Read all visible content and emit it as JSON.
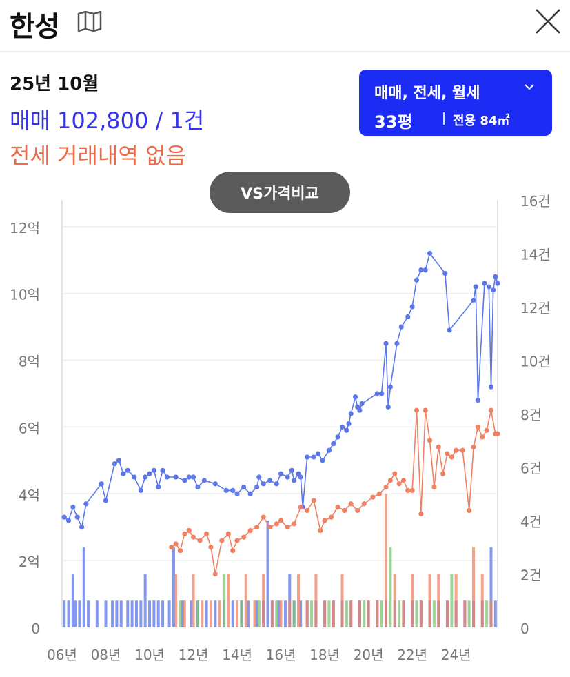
{
  "header": {
    "title": "한성",
    "map_icon": "map-icon",
    "close_icon": "close-icon"
  },
  "summary": {
    "date": "25년 10월",
    "sale_line": "매매 102,800 / 1건",
    "jeonse_line": "전세 거래내역 없음"
  },
  "filter": {
    "types": "매매, 전세, 월세",
    "size": "33평",
    "area": "전용 84㎡"
  },
  "vs_button": "VS가격비교",
  "colors": {
    "sale": "#5b77e8",
    "jeonse": "#f08264",
    "monthly": "#7cc470",
    "filter_bg": "#1c2cf5"
  },
  "chart_data": {
    "type": "line",
    "x_ticks": [
      "06년",
      "08년",
      "10년",
      "12년",
      "14년",
      "16년",
      "18년",
      "20년",
      "22년",
      "24년"
    ],
    "y_ticks_left": [
      "0",
      "2억",
      "4억",
      "6억",
      "8억",
      "10억",
      "12억"
    ],
    "y_ticks_right": [
      "0",
      "2건",
      "4건",
      "6건",
      "8건",
      "10건",
      "12건",
      "14건",
      "16건"
    ],
    "xlim": [
      2006,
      2025.9
    ],
    "ylim_left": [
      0,
      12.8
    ],
    "ylim_right": [
      0,
      16
    ],
    "series": [
      {
        "kind": "sale",
        "points": [
          [
            2006.1,
            3.3
          ],
          [
            2006.3,
            3.2
          ],
          [
            2006.5,
            3.6
          ],
          [
            2006.7,
            3.3
          ],
          [
            2006.9,
            3.0
          ],
          [
            2007.1,
            3.7
          ],
          [
            2007.8,
            4.3
          ],
          [
            2008.0,
            3.8
          ],
          [
            2008.4,
            4.9
          ],
          [
            2008.6,
            5.0
          ],
          [
            2008.8,
            4.6
          ],
          [
            2009.0,
            4.7
          ],
          [
            2009.3,
            4.5
          ],
          [
            2009.6,
            4.1
          ],
          [
            2009.8,
            4.5
          ],
          [
            2010.0,
            4.6
          ],
          [
            2010.2,
            4.7
          ],
          [
            2010.4,
            4.2
          ],
          [
            2010.6,
            4.7
          ],
          [
            2010.8,
            4.5
          ],
          [
            2011.2,
            4.5
          ],
          [
            2011.6,
            4.4
          ],
          [
            2011.8,
            4.5
          ],
          [
            2012.0,
            4.5
          ],
          [
            2012.2,
            4.2
          ],
          [
            2012.5,
            4.4
          ],
          [
            2013.0,
            4.3
          ],
          [
            2013.5,
            4.1
          ],
          [
            2013.8,
            4.1
          ],
          [
            2014.0,
            4.0
          ],
          [
            2014.3,
            4.2
          ],
          [
            2014.6,
            4.0
          ],
          [
            2014.9,
            4.2
          ],
          [
            2015.0,
            4.5
          ],
          [
            2015.2,
            4.3
          ],
          [
            2015.5,
            4.4
          ],
          [
            2015.8,
            4.3
          ],
          [
            2016.0,
            4.6
          ],
          [
            2016.3,
            4.5
          ],
          [
            2016.5,
            4.7
          ],
          [
            2016.6,
            4.4
          ],
          [
            2016.8,
            4.6
          ],
          [
            2016.9,
            4.5
          ],
          [
            2017.0,
            3.6
          ],
          [
            2017.2,
            5.1
          ],
          [
            2017.5,
            5.1
          ],
          [
            2017.7,
            5.2
          ],
          [
            2017.9,
            5.0
          ],
          [
            2018.2,
            5.3
          ],
          [
            2018.4,
            5.5
          ],
          [
            2018.6,
            5.7
          ],
          [
            2018.8,
            6.0
          ],
          [
            2019.0,
            5.9
          ],
          [
            2019.1,
            6.1
          ],
          [
            2019.2,
            6.4
          ],
          [
            2019.4,
            6.9
          ],
          [
            2019.5,
            6.6
          ],
          [
            2019.6,
            6.5
          ],
          [
            2019.7,
            6.7
          ],
          [
            2020.4,
            7.0
          ],
          [
            2020.6,
            7.0
          ],
          [
            2020.8,
            8.5
          ],
          [
            2020.9,
            6.6
          ],
          [
            2021.0,
            7.2
          ],
          [
            2021.3,
            8.5
          ],
          [
            2021.5,
            9.0
          ],
          [
            2021.8,
            9.3
          ],
          [
            2022.0,
            9.6
          ],
          [
            2022.2,
            10.4
          ],
          [
            2022.4,
            10.7
          ],
          [
            2022.6,
            10.7
          ],
          [
            2022.8,
            11.2
          ],
          [
            2023.5,
            10.6
          ],
          [
            2023.7,
            8.9
          ],
          [
            2024.8,
            9.8
          ],
          [
            2024.9,
            10.2
          ],
          [
            2025.0,
            6.8
          ],
          [
            2025.3,
            10.3
          ],
          [
            2025.5,
            10.2
          ],
          [
            2025.6,
            7.2
          ],
          [
            2025.7,
            10.1
          ],
          [
            2025.8,
            10.5
          ],
          [
            2025.9,
            10.3
          ]
        ]
      },
      {
        "kind": "jeonse",
        "points": [
          [
            2011.0,
            2.4
          ],
          [
            2011.2,
            2.5
          ],
          [
            2011.4,
            2.3
          ],
          [
            2011.6,
            2.8
          ],
          [
            2011.8,
            2.9
          ],
          [
            2012.0,
            2.7
          ],
          [
            2012.3,
            2.6
          ],
          [
            2012.6,
            2.8
          ],
          [
            2012.8,
            2.4
          ],
          [
            2013.0,
            1.6
          ],
          [
            2013.3,
            2.6
          ],
          [
            2013.6,
            2.8
          ],
          [
            2013.8,
            2.3
          ],
          [
            2014.0,
            2.6
          ],
          [
            2014.3,
            2.7
          ],
          [
            2014.6,
            2.9
          ],
          [
            2014.9,
            3.0
          ],
          [
            2015.2,
            3.3
          ],
          [
            2015.5,
            3.0
          ],
          [
            2015.8,
            3.1
          ],
          [
            2016.0,
            3.2
          ],
          [
            2016.3,
            3.0
          ],
          [
            2016.6,
            3.1
          ],
          [
            2016.9,
            3.6
          ],
          [
            2017.2,
            3.5
          ],
          [
            2017.5,
            3.8
          ],
          [
            2017.8,
            2.9
          ],
          [
            2018.0,
            3.2
          ],
          [
            2018.3,
            3.3
          ],
          [
            2018.6,
            3.6
          ],
          [
            2018.9,
            3.5
          ],
          [
            2019.2,
            3.7
          ],
          [
            2019.5,
            3.5
          ],
          [
            2019.8,
            3.7
          ],
          [
            2020.2,
            3.9
          ],
          [
            2020.5,
            4.0
          ],
          [
            2020.8,
            4.2
          ],
          [
            2021.0,
            4.4
          ],
          [
            2021.2,
            4.6
          ],
          [
            2021.4,
            4.3
          ],
          [
            2021.6,
            4.4
          ],
          [
            2021.8,
            4.1
          ],
          [
            2022.0,
            4.1
          ],
          [
            2022.2,
            6.5
          ],
          [
            2022.4,
            3.4
          ],
          [
            2022.6,
            6.5
          ],
          [
            2022.8,
            5.6
          ],
          [
            2023.0,
            4.2
          ],
          [
            2023.2,
            5.4
          ],
          [
            2023.4,
            4.6
          ],
          [
            2023.6,
            5.2
          ],
          [
            2023.8,
            5.1
          ],
          [
            2024.0,
            5.3
          ],
          [
            2024.3,
            5.3
          ],
          [
            2024.6,
            3.5
          ],
          [
            2024.8,
            5.4
          ],
          [
            2025.0,
            6.0
          ],
          [
            2025.2,
            5.7
          ],
          [
            2025.4,
            5.9
          ],
          [
            2025.6,
            6.5
          ],
          [
            2025.8,
            5.8
          ],
          [
            2025.9,
            5.8
          ]
        ]
      }
    ],
    "volume": [
      {
        "kind": "sale",
        "bars": [
          [
            2006.1,
            1
          ],
          [
            2006.3,
            1
          ],
          [
            2006.5,
            2
          ],
          [
            2006.6,
            1
          ],
          [
            2006.8,
            1
          ],
          [
            2007.0,
            3
          ],
          [
            2007.2,
            1
          ],
          [
            2007.6,
            1
          ],
          [
            2008.0,
            1
          ],
          [
            2008.3,
            1
          ],
          [
            2008.5,
            1
          ],
          [
            2008.7,
            1
          ],
          [
            2009.0,
            1
          ],
          [
            2009.2,
            1
          ],
          [
            2009.4,
            1
          ],
          [
            2009.6,
            1
          ],
          [
            2009.8,
            2
          ],
          [
            2010.0,
            1
          ],
          [
            2010.2,
            1
          ],
          [
            2010.4,
            1
          ],
          [
            2010.6,
            1
          ],
          [
            2010.9,
            1
          ],
          [
            2011.1,
            3
          ],
          [
            2011.5,
            1
          ],
          [
            2011.9,
            1
          ],
          [
            2012.2,
            1
          ],
          [
            2012.6,
            1
          ],
          [
            2013.0,
            1
          ],
          [
            2013.4,
            1
          ],
          [
            2013.8,
            1
          ],
          [
            2014.2,
            1
          ],
          [
            2014.5,
            1
          ],
          [
            2014.9,
            1
          ],
          [
            2015.2,
            1
          ],
          [
            2015.4,
            4
          ],
          [
            2015.6,
            1
          ],
          [
            2015.9,
            1
          ],
          [
            2016.2,
            1
          ],
          [
            2016.4,
            2
          ],
          [
            2016.6,
            1
          ],
          [
            2016.9,
            1
          ],
          [
            2017.2,
            1
          ],
          [
            2017.6,
            1
          ],
          [
            2018.0,
            1
          ],
          [
            2018.4,
            1
          ],
          [
            2018.8,
            1
          ],
          [
            2019.2,
            1
          ],
          [
            2019.6,
            1
          ],
          [
            2020.0,
            1
          ],
          [
            2020.4,
            1
          ],
          [
            2020.8,
            1
          ],
          [
            2021.2,
            1
          ],
          [
            2021.6,
            1
          ],
          [
            2022.0,
            1
          ],
          [
            2022.4,
            1
          ],
          [
            2022.8,
            1
          ],
          [
            2023.2,
            1
          ],
          [
            2023.6,
            1
          ],
          [
            2024.0,
            1
          ],
          [
            2024.4,
            1
          ],
          [
            2024.8,
            1
          ],
          [
            2025.2,
            1
          ],
          [
            2025.6,
            3
          ],
          [
            2025.8,
            1
          ]
        ]
      },
      {
        "kind": "jeonse",
        "bars": [
          [
            2011.2,
            2
          ],
          [
            2011.6,
            1
          ],
          [
            2012.0,
            2
          ],
          [
            2012.4,
            1
          ],
          [
            2012.8,
            1
          ],
          [
            2013.2,
            1
          ],
          [
            2013.6,
            2
          ],
          [
            2014.0,
            1
          ],
          [
            2014.4,
            2
          ],
          [
            2014.8,
            1
          ],
          [
            2015.2,
            2
          ],
          [
            2015.6,
            1
          ],
          [
            2016.0,
            1
          ],
          [
            2016.4,
            1
          ],
          [
            2016.8,
            2
          ],
          [
            2017.2,
            1
          ],
          [
            2017.6,
            2
          ],
          [
            2018.0,
            1
          ],
          [
            2018.4,
            1
          ],
          [
            2018.8,
            2
          ],
          [
            2019.2,
            1
          ],
          [
            2019.6,
            1
          ],
          [
            2020.0,
            1
          ],
          [
            2020.4,
            1
          ],
          [
            2020.8,
            5
          ],
          [
            2021.2,
            2
          ],
          [
            2021.6,
            1
          ],
          [
            2022.0,
            2
          ],
          [
            2022.4,
            1
          ],
          [
            2022.8,
            2
          ],
          [
            2023.2,
            2
          ],
          [
            2023.6,
            1
          ],
          [
            2024.0,
            2
          ],
          [
            2024.4,
            1
          ],
          [
            2024.8,
            3
          ],
          [
            2025.2,
            2
          ],
          [
            2025.6,
            1
          ]
        ]
      },
      {
        "kind": "monthly",
        "bars": [
          [
            2011.4,
            1
          ],
          [
            2012.2,
            1
          ],
          [
            2013.4,
            2
          ],
          [
            2014.2,
            1
          ],
          [
            2015.0,
            1
          ],
          [
            2015.8,
            1
          ],
          [
            2016.6,
            1
          ],
          [
            2017.4,
            1
          ],
          [
            2018.2,
            1
          ],
          [
            2019.0,
            1
          ],
          [
            2019.8,
            1
          ],
          [
            2020.6,
            1
          ],
          [
            2021.0,
            3
          ],
          [
            2021.4,
            1
          ],
          [
            2022.2,
            1
          ],
          [
            2023.0,
            1
          ],
          [
            2023.8,
            2
          ],
          [
            2024.6,
            1
          ],
          [
            2025.4,
            1
          ]
        ]
      }
    ]
  }
}
